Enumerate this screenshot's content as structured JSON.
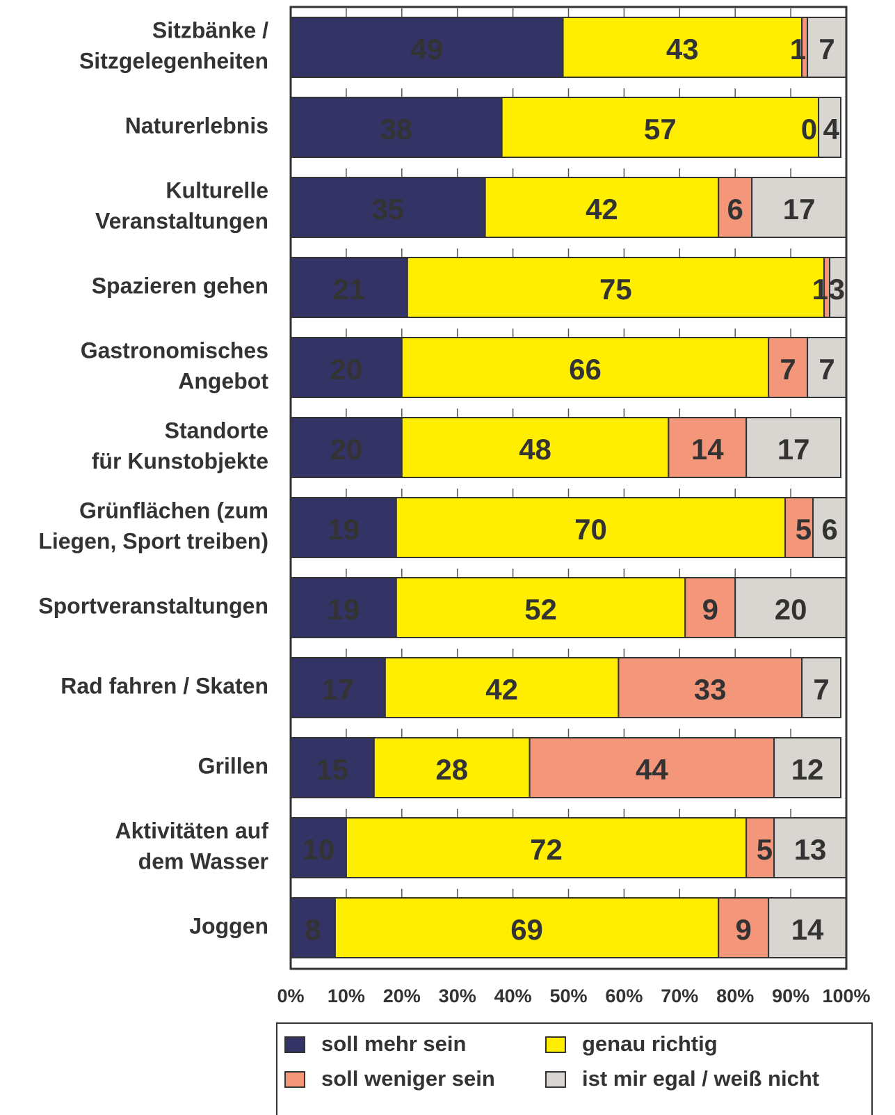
{
  "chart_data": {
    "type": "stacked_barh",
    "categories": [
      [
        "Sitzbänke /",
        "Sitzgelegenheiten"
      ],
      [
        "Naturerlebnis"
      ],
      [
        "Kulturelle",
        "Veranstaltungen"
      ],
      [
        "Spazieren gehen"
      ],
      [
        "Gastronomisches",
        "Angebot"
      ],
      [
        "Standorte",
        "für Kunstobjekte"
      ],
      [
        "Grünflächen (zum",
        "Liegen, Sport treiben)"
      ],
      [
        "Sportveranstaltungen"
      ],
      [
        "Rad fahren / Skaten"
      ],
      [
        "Grillen"
      ],
      [
        "Aktivitäten auf",
        "dem Wasser"
      ],
      [
        "Joggen"
      ]
    ],
    "series": [
      {
        "name": "soll mehr sein",
        "color": "#333366",
        "values": [
          49,
          38,
          35,
          21,
          20,
          20,
          19,
          19,
          17,
          15,
          10,
          8
        ]
      },
      {
        "name": "genau richtig",
        "color": "#ffee00",
        "values": [
          43,
          57,
          42,
          75,
          66,
          48,
          70,
          52,
          42,
          28,
          72,
          69
        ]
      },
      {
        "name": "soll weniger sein",
        "color": "#f4967a",
        "values": [
          1,
          0,
          6,
          1,
          7,
          14,
          5,
          9,
          33,
          44,
          5,
          9
        ]
      },
      {
        "name": "ist mir egal / weiß nicht",
        "color": "#d9d5d0",
        "values": [
          7,
          4,
          17,
          3,
          7,
          17,
          6,
          20,
          7,
          12,
          13,
          14
        ]
      }
    ],
    "xlim": [
      0,
      100
    ],
    "xticks": [
      {
        "value": 0,
        "label": "0%"
      },
      {
        "value": 10,
        "label": "10%"
      },
      {
        "value": 20,
        "label": "20%"
      },
      {
        "value": 30,
        "label": "30%"
      },
      {
        "value": 40,
        "label": "40%"
      },
      {
        "value": 50,
        "label": "50%"
      },
      {
        "value": 60,
        "label": "60%"
      },
      {
        "value": 70,
        "label": "70%"
      },
      {
        "value": 80,
        "label": "80%"
      },
      {
        "value": 90,
        "label": "90%"
      },
      {
        "value": 100,
        "label": "100%"
      }
    ],
    "grid": true
  }
}
